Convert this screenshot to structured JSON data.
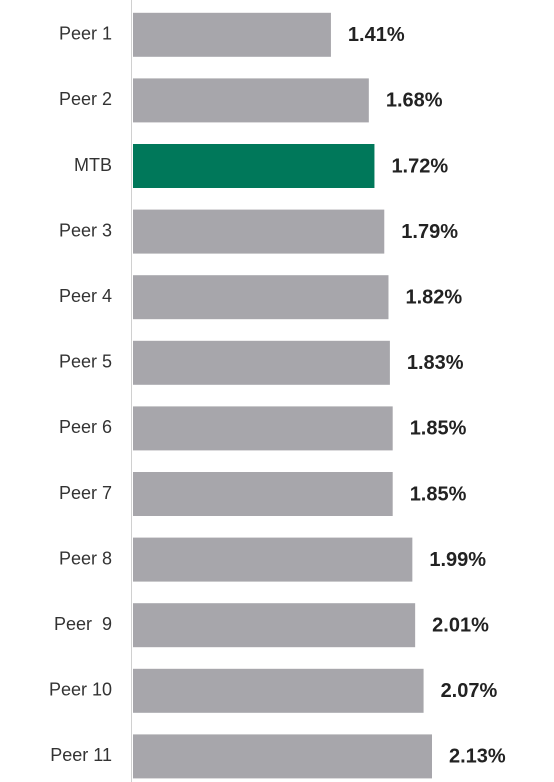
{
  "chart_data": {
    "type": "bar",
    "orientation": "horizontal",
    "categories": [
      "Peer 1",
      "Peer 2",
      "MTB",
      "Peer 3",
      "Peer 4",
      "Peer 5",
      "Peer 6",
      "Peer 7",
      "Peer 8",
      "Peer  9",
      "Peer 10",
      "Peer 11"
    ],
    "values": [
      1.41,
      1.68,
      1.72,
      1.79,
      1.82,
      1.83,
      1.85,
      1.85,
      1.99,
      2.01,
      2.07,
      2.13
    ],
    "value_labels": [
      "1.41%",
      "1.68%",
      "1.72%",
      "1.79%",
      "1.82%",
      "1.83%",
      "1.85%",
      "1.85%",
      "1.99%",
      "2.01%",
      "2.07%",
      "2.13%"
    ],
    "colors": [
      "#a7a6ab",
      "#a7a6ab",
      "#00785a",
      "#a7a6ab",
      "#a7a6ab",
      "#a7a6ab",
      "#a7a6ab",
      "#a7a6ab",
      "#a7a6ab",
      "#a7a6ab",
      "#a7a6ab",
      "#a7a6ab"
    ]
  }
}
